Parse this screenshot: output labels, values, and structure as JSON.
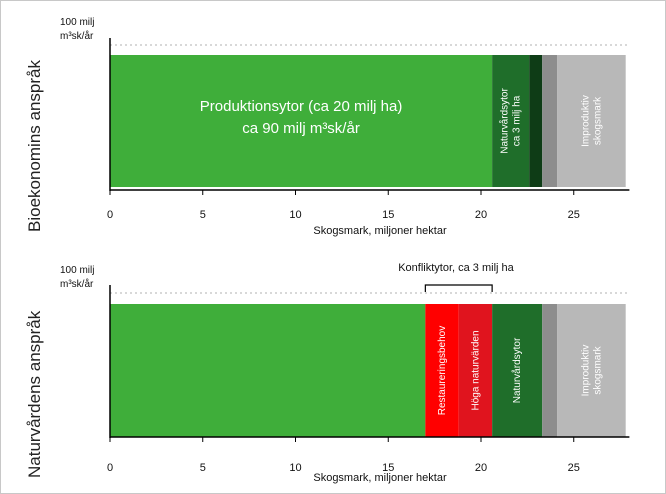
{
  "chart_data": [
    {
      "type": "bar",
      "orientation": "horizontal-stacked",
      "title": "Bioekonomins anspråk",
      "ytop_label": "100 milj",
      "ytop_unit": "m³sk/år",
      "xlabel": "Skogsmark, miljoner hektar",
      "xticks": [
        "0",
        "5",
        "10",
        "15",
        "20",
        "25"
      ],
      "xlim": [
        0,
        28
      ],
      "segments": [
        {
          "label": "Produktionsytor (ca 20 milj ha)",
          "label2": "ca 90 milj m³sk/år",
          "start": 0,
          "end": 20.6,
          "color": "#3fae3a"
        },
        {
          "label": "Naturvårdsytor",
          "label2": "ca 3 milj ha",
          "start": 20.6,
          "end": 22.6,
          "color": "#1f6e2a"
        },
        {
          "label": "",
          "start": 22.6,
          "end": 23.3,
          "color": "#0e3c16"
        },
        {
          "label": "",
          "start": 23.3,
          "end": 24.1,
          "color": "#8d8d8d"
        },
        {
          "label": "Improduktiv",
          "label2": "skogsmark",
          "start": 24.1,
          "end": 27.8,
          "color": "#b8b8b8"
        }
      ]
    },
    {
      "type": "bar",
      "orientation": "horizontal-stacked",
      "title": "Naturvårdens anspråk",
      "ytop_label": "100 milj",
      "ytop_unit": "m³sk/år",
      "xlabel": "Skogsmark, miljoner hektar",
      "xticks": [
        "0",
        "5",
        "10",
        "15",
        "20",
        "25"
      ],
      "xlim": [
        0,
        28
      ],
      "conflict": {
        "label": "Konfliktytor, ca 3 milj ha",
        "start": 17.0,
        "end": 20.6
      },
      "segments": [
        {
          "label": "",
          "start": 0,
          "end": 17.0,
          "color": "#3fae3a"
        },
        {
          "label": "Restaureringsbehov",
          "start": 17.0,
          "end": 18.8,
          "color": "#ff0000"
        },
        {
          "label": "Höga naturvärden",
          "start": 18.8,
          "end": 20.6,
          "color": "#e0141e"
        },
        {
          "label": "Naturvårdsytor",
          "start": 20.6,
          "end": 23.3,
          "color": "#1f6e2a"
        },
        {
          "label": "",
          "start": 23.3,
          "end": 24.1,
          "color": "#8d8d8d"
        },
        {
          "label": "Improduktiv",
          "label2": "skogsmark",
          "start": 24.1,
          "end": 27.8,
          "color": "#b8b8b8"
        }
      ]
    }
  ]
}
